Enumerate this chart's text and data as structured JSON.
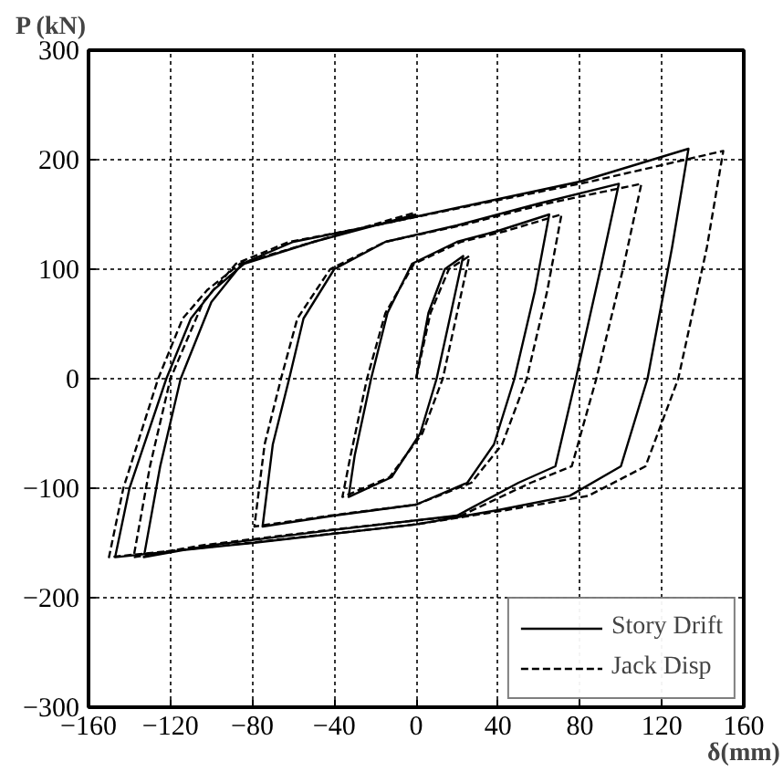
{
  "chart_data": {
    "type": "line",
    "xlabel": "δ(mm)",
    "ylabel": "P (kN)",
    "xlim": [
      -160,
      160
    ],
    "ylim": [
      -300,
      300
    ],
    "xticks": [
      -160,
      -120,
      -80,
      -40,
      0,
      40,
      80,
      120,
      160
    ],
    "yticks": [
      -300,
      -200,
      -100,
      0,
      100,
      200,
      300
    ],
    "grid": true,
    "legend": "bottom right",
    "series": [
      {
        "name": "Story Drift",
        "color": "#000000",
        "line_style": "solid",
        "x": [
          0,
          6,
          14,
          23,
          17,
          10,
          2,
          -12,
          -33,
          -30,
          -22,
          -14,
          -2,
          20,
          40,
          65,
          58,
          48,
          38,
          25,
          0,
          -40,
          -75,
          -70,
          -62,
          -55,
          -40,
          -15,
          20,
          60,
          99,
          90,
          78,
          68,
          50,
          20,
          -40,
          -100,
          -133,
          -125,
          -115,
          -100,
          -85,
          -60,
          -20,
          30,
          80,
          133,
          125,
          113,
          100,
          75,
          40,
          0,
          -80,
          -147,
          -140,
          -122,
          -110,
          -99,
          -84,
          -50,
          0
        ],
        "values": [
          0,
          60,
          100,
          112,
          60,
          0,
          -50,
          -90,
          -108,
          -70,
          0,
          60,
          105,
          125,
          135,
          150,
          80,
          0,
          -60,
          -95,
          -115,
          -125,
          -135,
          -60,
          0,
          55,
          100,
          125,
          140,
          160,
          178,
          100,
          0,
          -80,
          -95,
          -125,
          -138,
          -152,
          -163,
          -80,
          0,
          70,
          105,
          125,
          140,
          160,
          180,
          210,
          120,
          0,
          -80,
          -107,
          -120,
          -133,
          -150,
          -163,
          -100,
          0,
          55,
          81,
          105,
          125,
          150
        ]
      },
      {
        "name": "Jack Disp",
        "color": "#000000",
        "line_style": "dashed",
        "x": [
          0,
          7,
          16,
          26,
          20,
          13,
          3,
          -13,
          -36,
          -32,
          -24,
          -15,
          -1,
          22,
          44,
          71,
          64,
          54,
          42,
          27,
          0,
          -42,
          -79,
          -74,
          -66,
          -58,
          -42,
          -15,
          22,
          64,
          110,
          101,
          88,
          76,
          56,
          22,
          -42,
          -104,
          -138,
          -130,
          -120,
          -104,
          -88,
          -62,
          -20,
          32,
          85,
          150,
          142,
          128,
          112,
          84,
          44,
          0,
          -82,
          -150,
          -143,
          -126,
          -114,
          -102,
          -86,
          -50,
          0
        ],
        "values": [
          0,
          60,
          100,
          112,
          60,
          0,
          -50,
          -90,
          -108,
          -70,
          0,
          60,
          105,
          125,
          135,
          150,
          80,
          0,
          -60,
          -95,
          -115,
          -125,
          -135,
          -60,
          0,
          55,
          100,
          125,
          140,
          160,
          178,
          100,
          0,
          -80,
          -95,
          -125,
          -138,
          -152,
          -163,
          -80,
          0,
          70,
          105,
          125,
          140,
          160,
          180,
          208,
          120,
          0,
          -80,
          -107,
          -120,
          -133,
          -150,
          -163,
          -100,
          0,
          55,
          81,
          105,
          125,
          152
        ]
      }
    ]
  }
}
